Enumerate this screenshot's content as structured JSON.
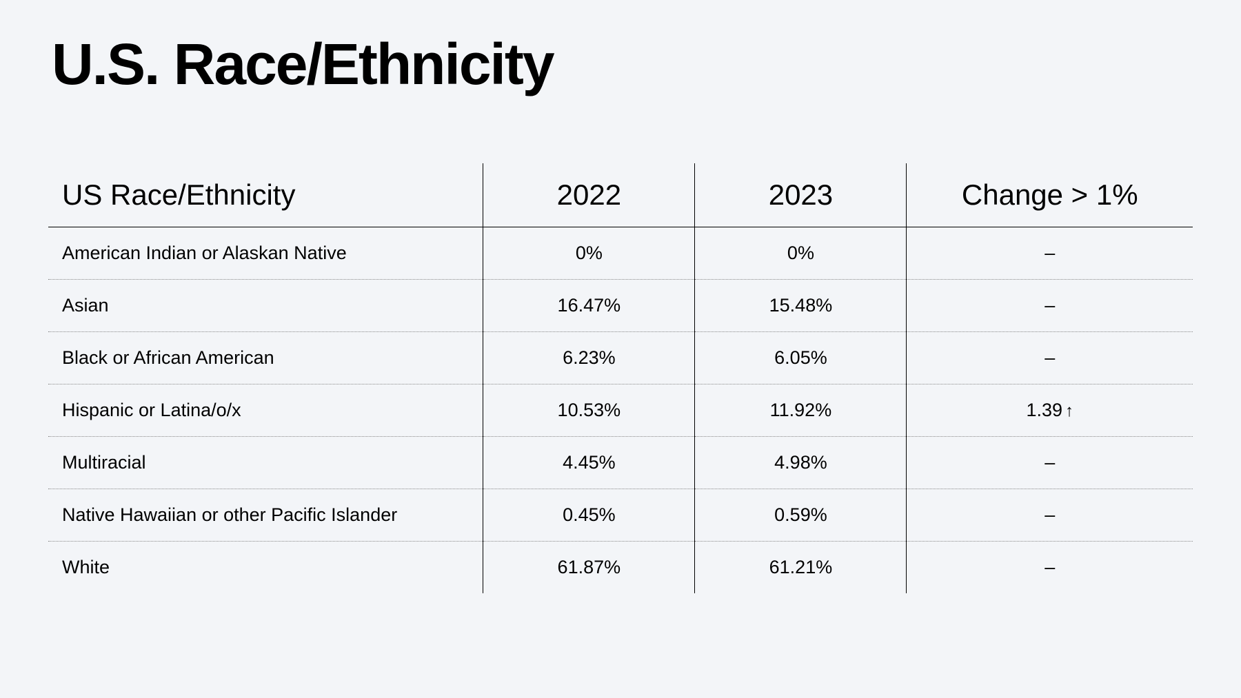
{
  "title": "U.S. Race/Ethnicity",
  "table": {
    "type": "table",
    "background_color": "#f3f5f8",
    "text_color": "#000000",
    "border_color": "#000000",
    "dotted_border_color": "#888888",
    "header_fontsize": 42,
    "cell_fontsize": 27,
    "title_fontsize": 84,
    "font_weight_title": 600,
    "font_weight_header": 500,
    "font_weight_cell": 500,
    "columns": [
      {
        "label": "US Race/Ethnicity",
        "align": "left",
        "width_pct": 38
      },
      {
        "label": "2022",
        "align": "center",
        "width_pct": 18.5
      },
      {
        "label": "2023",
        "align": "center",
        "width_pct": 18.5
      },
      {
        "label": "Change > 1%",
        "align": "center",
        "width_pct": 25
      }
    ],
    "rows": [
      {
        "category": "American Indian or Alaskan Native",
        "y2022": "0%",
        "y2023": "0%",
        "change": "–",
        "direction": "none"
      },
      {
        "category": "Asian",
        "y2022": "16.47%",
        "y2023": "15.48%",
        "change": "–",
        "direction": "none"
      },
      {
        "category": "Black or African American",
        "y2022": "6.23%",
        "y2023": "6.05%",
        "change": "–",
        "direction": "none"
      },
      {
        "category": "Hispanic or Latina/o/x",
        "y2022": "10.53%",
        "y2023": "11.92%",
        "change": "1.39",
        "direction": "up"
      },
      {
        "category": "Multiracial",
        "y2022": "4.45%",
        "y2023": "4.98%",
        "change": "–",
        "direction": "none"
      },
      {
        "category": "Native Hawaiian or other Pacific Islander",
        "y2022": "0.45%",
        "y2023": "0.59%",
        "change": "–",
        "direction": "none"
      },
      {
        "category": "White",
        "y2022": "61.87%",
        "y2023": "61.21%",
        "change": "–",
        "direction": "none"
      }
    ],
    "direction_icons": {
      "up": "↑",
      "down": "↓",
      "none": ""
    }
  }
}
